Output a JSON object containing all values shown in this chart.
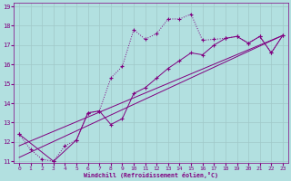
{
  "xlabel": "Windchill (Refroidissement éolien,°C)",
  "bg_color": "#b2e0e0",
  "grid_color": "#c8dada",
  "line_color": "#800080",
  "xmin": 0,
  "xmax": 23,
  "ymin": 11,
  "ymax": 19,
  "x_ticks": [
    0,
    1,
    2,
    3,
    4,
    5,
    6,
    7,
    8,
    9,
    10,
    11,
    12,
    13,
    14,
    15,
    16,
    17,
    18,
    19,
    20,
    21,
    22,
    23
  ],
  "y_ticks": [
    11,
    12,
    13,
    14,
    15,
    16,
    17,
    18,
    19
  ],
  "series1_x": [
    0,
    1,
    2,
    3,
    4,
    5,
    6,
    7,
    8,
    9,
    10,
    11,
    12,
    13,
    14,
    15,
    16,
    17,
    18,
    19,
    20,
    21,
    22,
    23
  ],
  "series1_y": [
    12.4,
    11.6,
    11.1,
    11.0,
    11.8,
    12.1,
    13.5,
    13.6,
    15.3,
    15.9,
    17.8,
    17.3,
    17.6,
    18.35,
    18.35,
    18.6,
    17.25,
    17.3,
    17.35,
    17.45,
    17.1,
    17.45,
    16.6,
    17.5
  ],
  "series2_x": [
    0,
    3,
    5,
    6,
    7,
    8,
    9,
    10,
    11,
    12,
    13,
    14,
    15,
    16,
    17,
    18,
    19,
    20,
    21,
    22,
    23
  ],
  "series2_y": [
    12.4,
    11.0,
    12.1,
    13.5,
    13.6,
    12.9,
    13.2,
    14.5,
    14.8,
    15.3,
    15.8,
    16.2,
    16.6,
    16.5,
    17.0,
    17.35,
    17.45,
    17.1,
    17.45,
    16.6,
    17.5
  ],
  "line1_x": [
    0,
    23
  ],
  "line1_y": [
    11.2,
    17.5
  ],
  "line2_x": [
    0,
    23
  ],
  "line2_y": [
    11.8,
    17.5
  ]
}
